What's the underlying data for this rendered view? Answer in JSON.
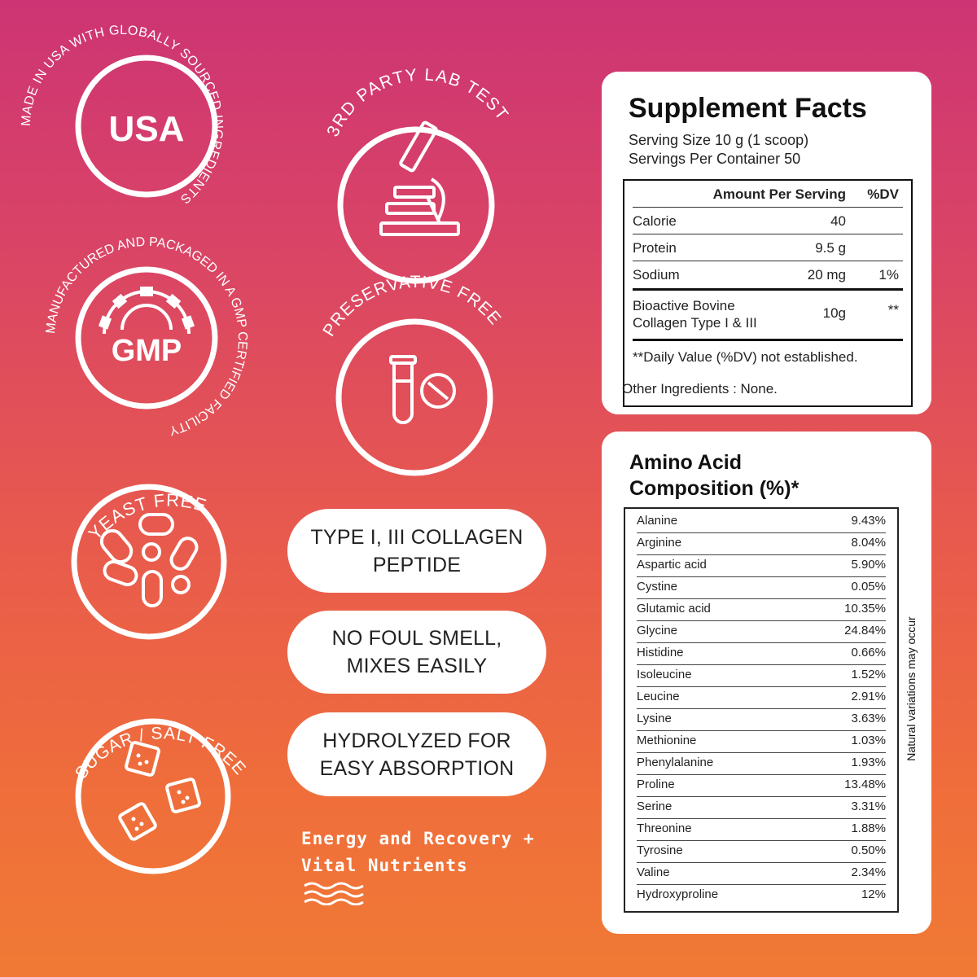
{
  "badges": {
    "usa": {
      "label": "USA",
      "arc": "MADE IN USA WITH GLOBALLY SOURCED INGREDIENTS"
    },
    "lab": {
      "arc": "3RD PARTY LAB TEST",
      "icon": "microscope-icon"
    },
    "gmp": {
      "label": "GMP",
      "arc": "MANUFACTURED AND PACKAGED IN A GMP CERTIFIED FACILITY",
      "icon": "gear-icon"
    },
    "preservative": {
      "arc": "PRESERVATIVE FREE",
      "icon": "test-tube-icon"
    },
    "yeast": {
      "arc": "YEAST FREE",
      "icon": "yeast-cells-icon"
    },
    "sugar": {
      "arc": "SUGAR / SALT FREE",
      "icon": "sugar-cubes-icon"
    }
  },
  "pills": [
    {
      "line1": "TYPE I, III COLLAGEN",
      "line2": "PEPTIDE"
    },
    {
      "line1": "NO FOUL SMELL,",
      "line2": "MIXES EASILY"
    },
    {
      "line1": "HYDROLYZED FOR",
      "line2": "EASY ABSORPTION"
    }
  ],
  "tagline": {
    "line1": "Energy and Recovery +",
    "line2": "Vital Nutrients"
  },
  "supplement_facts": {
    "title": "Supplement Facts",
    "serving_size": "Serving Size 10 g (1 scoop)",
    "servings_per_container": "Servings Per Container 50",
    "header_amount": "Amount Per Serving",
    "header_dv": "%DV",
    "rows": [
      {
        "name": "Calorie",
        "amount": "40",
        "dv": ""
      },
      {
        "name": "Protein",
        "amount": "9.5 g",
        "dv": ""
      },
      {
        "name": "Sodium",
        "amount": "20 mg",
        "dv": "1%"
      },
      {
        "name1": "Bioactive Bovine",
        "name2": "Collagen Type I & III",
        "amount": "10g",
        "dv": "**"
      }
    ],
    "footnote": "**Daily Value (%DV) not established.",
    "other": "Other Ingredients : None."
  },
  "amino_acids": {
    "title_line1": "Amino Acid",
    "title_line2": "Composition (%)*",
    "side_note": "Natural variations may occur",
    "rows": [
      {
        "name": "Alanine",
        "value": "9.43%"
      },
      {
        "name": "Arginine",
        "value": "8.04%"
      },
      {
        "name": "Aspartic acid",
        "value": "5.90%"
      },
      {
        "name": "Cystine",
        "value": "0.05%"
      },
      {
        "name": "Glutamic acid",
        "value": "10.35%"
      },
      {
        "name": "Glycine",
        "value": "24.84%"
      },
      {
        "name": "Histidine",
        "value": "0.66%"
      },
      {
        "name": "Isoleucine",
        "value": "1.52%"
      },
      {
        "name": "Leucine",
        "value": "2.91%"
      },
      {
        "name": "Lysine",
        "value": "3.63%"
      },
      {
        "name": "Methionine",
        "value": "1.03%"
      },
      {
        "name": "Phenylalanine",
        "value": "1.93%"
      },
      {
        "name": "Proline",
        "value": "13.48%"
      },
      {
        "name": "Serine",
        "value": "3.31%"
      },
      {
        "name": "Threonine",
        "value": "1.88%"
      },
      {
        "name": "Tyrosine",
        "value": "0.50%"
      },
      {
        "name": "Valine",
        "value": "2.34%"
      },
      {
        "name": "Hydroxyproline",
        "value": "12%"
      }
    ]
  }
}
